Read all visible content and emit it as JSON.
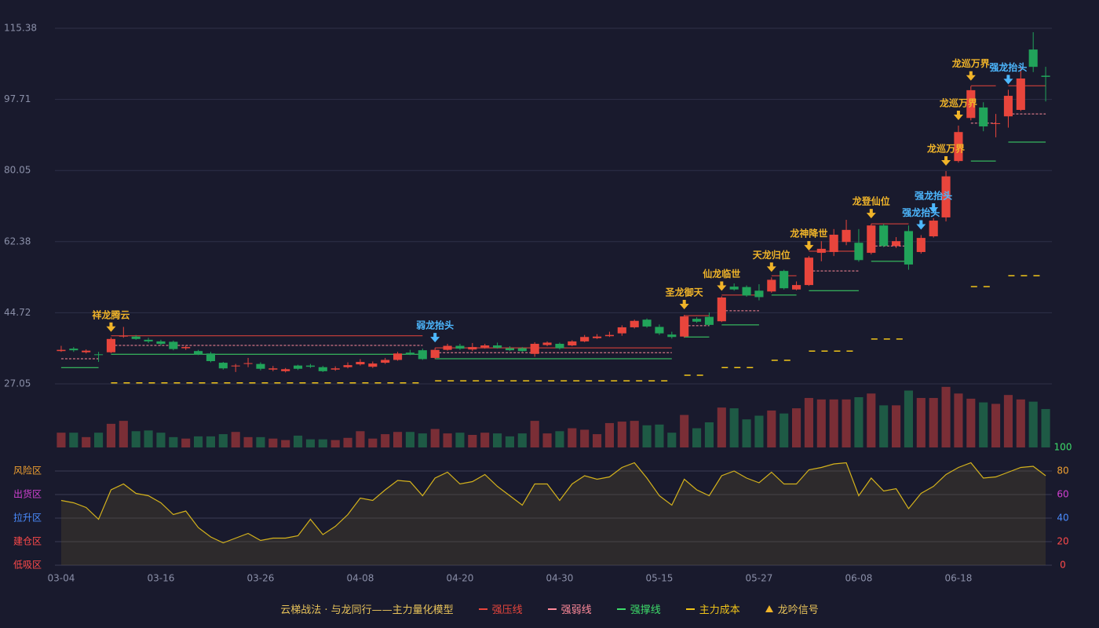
{
  "chart_data": {
    "type": "candlestick",
    "categories": [
      "03-04",
      null,
      null,
      null,
      null,
      null,
      null,
      null,
      "03-16",
      null,
      null,
      null,
      null,
      null,
      null,
      null,
      "03-26",
      null,
      null,
      null,
      null,
      null,
      null,
      null,
      "04-08",
      null,
      null,
      null,
      null,
      null,
      null,
      null,
      "04-20",
      null,
      null,
      null,
      null,
      null,
      null,
      null,
      "04-30",
      null,
      null,
      null,
      null,
      null,
      null,
      null,
      "05-15",
      null,
      null,
      null,
      null,
      null,
      null,
      null,
      "05-27",
      null,
      null,
      null,
      null,
      null,
      null,
      null,
      "06-08",
      null,
      null,
      null,
      null,
      null,
      null,
      null,
      "06-18",
      null,
      null,
      null,
      null,
      null,
      null,
      null
    ],
    "open": [
      35.2,
      35.8,
      34.9,
      34.4,
      34.9,
      38.8,
      38.8,
      38.0,
      37.6,
      37.5,
      35.9,
      35.2,
      34.6,
      32.3,
      31.4,
      32.0,
      32.0,
      30.6,
      30.2,
      31.6,
      31.6,
      31.2,
      30.6,
      31.2,
      31.9,
      31.3,
      32.3,
      33.0,
      34.8,
      35.4,
      33.5,
      35.5,
      36.5,
      35.6,
      36.1,
      36.6,
      35.9,
      35.9,
      34.5,
      36.7,
      37.0,
      36.6,
      37.6,
      38.4,
      38.9,
      39.6,
      41.1,
      43.0,
      41.2,
      39.3,
      38.8,
      43.2,
      43.7,
      42.6,
      51.2,
      51.1,
      50.2,
      50.0,
      55.1,
      50.5,
      51.6,
      59.6,
      59.8,
      62.3,
      62.1,
      59.6,
      66.4,
      61.3,
      65.0,
      59.8,
      63.7,
      68.4,
      82.4,
      93.1,
      95.7,
      91.7,
      93.5,
      95.1,
      110.1,
      103.6
    ],
    "close": [
      35.5,
      35.4,
      35.3,
      34.2,
      38.2,
      39.0,
      38.2,
      37.6,
      37.0,
      35.7,
      36.2,
      34.4,
      32.7,
      30.9,
      31.6,
      32.2,
      30.8,
      30.9,
      30.7,
      30.8,
      31.3,
      30.2,
      30.9,
      31.7,
      32.5,
      32.1,
      33.0,
      34.6,
      34.4,
      33.2,
      35.5,
      36.5,
      35.8,
      36.2,
      36.6,
      36.0,
      35.4,
      35.2,
      37.0,
      37.3,
      35.9,
      37.6,
      38.7,
      38.8,
      39.2,
      41.1,
      42.7,
      41.3,
      39.6,
      38.7,
      43.8,
      42.5,
      41.7,
      48.5,
      50.5,
      49.0,
      48.6,
      52.9,
      50.8,
      51.6,
      58.4,
      60.6,
      64.1,
      65.3,
      57.8,
      66.4,
      61.3,
      62.5,
      56.7,
      63.3,
      67.6,
      78.6,
      89.6,
      100.0,
      91.0,
      91.8,
      98.6,
      102.9,
      105.8,
      103.3
    ],
    "high": [
      36.5,
      36.2,
      35.6,
      35.0,
      38.6,
      41.2,
      39.2,
      38.5,
      38.0,
      37.8,
      36.6,
      35.5,
      35.0,
      32.5,
      32.0,
      33.5,
      32.4,
      31.5,
      31.0,
      31.8,
      32.0,
      31.5,
      31.4,
      32.4,
      33.2,
      32.6,
      33.5,
      35.0,
      35.5,
      35.8,
      36.0,
      37.0,
      37.0,
      37.2,
      37.0,
      37.3,
      36.4,
      36.2,
      37.4,
      37.6,
      37.3,
      37.9,
      39.2,
      39.4,
      40.0,
      41.6,
      43.0,
      43.3,
      41.8,
      40.0,
      44.2,
      43.6,
      44.8,
      48.8,
      52.0,
      51.5,
      51.8,
      53.5,
      55.4,
      52.5,
      58.8,
      62.5,
      65.5,
      67.8,
      65.5,
      66.8,
      66.8,
      63.5,
      66.4,
      64.0,
      68.2,
      79.9,
      91.2,
      101.0,
      97.0,
      94.1,
      100.1,
      106.0,
      114.4,
      105.8
    ],
    "low": [
      35.0,
      35.0,
      34.6,
      32.5,
      34.7,
      38.5,
      38.0,
      37.2,
      36.6,
      35.4,
      35.5,
      34.2,
      32.4,
      30.6,
      30.0,
      31.2,
      30.4,
      30.2,
      29.9,
      30.5,
      31.0,
      30.0,
      30.3,
      30.9,
      31.6,
      31.0,
      32.0,
      32.8,
      34.2,
      33.0,
      33.2,
      35.3,
      35.5,
      35.2,
      35.8,
      35.8,
      35.2,
      35.0,
      33.8,
      36.4,
      35.6,
      36.4,
      37.4,
      38.2,
      38.7,
      39.0,
      40.8,
      41.0,
      39.2,
      38.3,
      38.5,
      42.2,
      41.4,
      42.4,
      50.2,
      48.7,
      47.8,
      49.7,
      50.5,
      50.3,
      51.4,
      57.5,
      58.8,
      61.5,
      57.4,
      59.2,
      61.0,
      60.8,
      55.4,
      59.4,
      63.4,
      67.4,
      82.0,
      92.5,
      89.8,
      88.3,
      90.7,
      94.8,
      104.5,
      97.2
    ],
    "up_color": "#e8453c",
    "down_color": "#21a35a",
    "ylim": [
      27.05,
      115.38
    ],
    "yticks": [
      27.05,
      44.72,
      62.38,
      80.05,
      97.71,
      115.38
    ],
    "grid": true,
    "volume": {
      "values": [
        20,
        20,
        14,
        20,
        32,
        36,
        22,
        23,
        20,
        14,
        12,
        15,
        15,
        18,
        21,
        14,
        14,
        12,
        10,
        16,
        11,
        11,
        10,
        13,
        22,
        12,
        18,
        21,
        21,
        19,
        25,
        19,
        20,
        17,
        20,
        19,
        15,
        19,
        36,
        19,
        22,
        26,
        24,
        18,
        33,
        35,
        36,
        30,
        31,
        20,
        44,
        26,
        34,
        54,
        53,
        38,
        43,
        50,
        46,
        53,
        67,
        65,
        65,
        65,
        68,
        73,
        57,
        57,
        77,
        67,
        67,
        82,
        73,
        66,
        61,
        59,
        71,
        65,
        62,
        52
      ],
      "ylim": [
        0,
        85
      ],
      "up_color": "#7a2e36",
      "down_color": "#1e5a45"
    },
    "levels": {
      "ranges": [
        [
          0,
          3
        ],
        [
          4,
          29
        ],
        [
          30,
          49
        ],
        [
          50,
          52
        ],
        [
          53,
          56
        ],
        [
          57,
          59
        ],
        [
          60,
          64
        ],
        [
          65,
          68
        ],
        [
          73,
          75
        ],
        [
          76,
          79
        ]
      ],
      "series": [
        {
          "name": "强压线",
          "color": "#e8453c",
          "dash": false,
          "values": [
            null,
            39.0,
            36.0,
            44.0,
            49.1,
            53.9,
            60.0,
            66.8,
            101.1,
            101.1
          ]
        },
        {
          "name": "强弱线",
          "color": "#ff8a9a",
          "dash": true,
          "values": [
            33.3,
            36.6,
            34.8,
            41.5,
            45.2,
            null,
            55.1,
            61.3,
            91.8,
            94.1
          ]
        },
        {
          "name": "强撑线",
          "color": "#3ddc6a",
          "dash": false,
          "values": [
            31.1,
            34.4,
            33.3,
            38.7,
            41.7,
            49.1,
            50.2,
            57.5,
            82.4,
            87.1
          ]
        },
        {
          "name": "主力成本",
          "color": "#f0c419",
          "dash": true,
          "values": [
            null,
            27.3,
            27.8,
            29.2,
            31.1,
            32.9,
            35.2,
            38.2,
            51.2,
            53.9
          ]
        }
      ]
    },
    "signals": [
      {
        "index": 4,
        "label": "祥龙腾云",
        "color": "#f0b429"
      },
      {
        "index": 30,
        "label": "弱龙抬头",
        "color": "#4db8ff"
      },
      {
        "index": 50,
        "label": "圣龙御天",
        "color": "#f0b429"
      },
      {
        "index": 53,
        "label": "仙龙临世",
        "color": "#f0b429"
      },
      {
        "index": 57,
        "label": "天龙归位",
        "color": "#f0b429"
      },
      {
        "index": 60,
        "label": "龙神降世",
        "color": "#f0b429"
      },
      {
        "index": 65,
        "label": "龙登仙位",
        "color": "#f0b429"
      },
      {
        "index": 69,
        "label": "强龙抬头",
        "color": "#4db8ff"
      },
      {
        "index": 70,
        "label": "强龙抬头",
        "color": "#4db8ff"
      },
      {
        "index": 71,
        "label": "龙巡万界",
        "color": "#f0b429"
      },
      {
        "index": 72,
        "label": "龙巡万界",
        "color": "#f0b429"
      },
      {
        "index": 73,
        "label": "龙巡万界",
        "color": "#f0b429"
      },
      {
        "index": 76,
        "label": "强龙抬头",
        "color": "#4db8ff"
      }
    ],
    "oscillator": {
      "values": [
        55,
        53,
        49,
        39,
        64,
        69,
        61,
        59,
        53,
        43,
        46,
        32,
        24,
        19,
        23,
        27,
        21,
        23,
        23,
        25,
        39,
        26,
        33,
        43,
        57,
        55,
        64,
        72,
        71,
        59,
        74,
        79,
        69,
        71,
        77,
        67,
        59,
        51,
        69,
        69,
        55,
        69,
        76,
        73,
        75,
        83,
        87,
        74,
        59,
        51,
        73,
        64,
        59,
        76,
        80,
        74,
        70,
        79,
        69,
        69,
        81,
        83,
        86,
        87,
        59,
        74,
        63,
        65,
        48,
        61,
        67,
        77,
        83,
        87,
        74,
        75,
        79,
        83,
        84,
        76
      ],
      "ylim": [
        0,
        100
      ],
      "yticks": [
        0,
        20,
        40,
        60,
        80,
        100
      ],
      "tick_colors": [
        "#ff4a4a",
        "#ff4a4a",
        "#4a8cff",
        "#d040d0",
        "#f0a030",
        "#3ddc6a"
      ],
      "zones": [
        "低吸区",
        "建仓区",
        "拉升区",
        "出货区",
        "风险区"
      ],
      "zone_colors": [
        "#ff4a4a",
        "#ff4a4a",
        "#4a8cff",
        "#d040d0",
        "#f0a030"
      ],
      "color": "#d4b21c"
    },
    "legend_title": "云梯战法 · 与龙同行——主力量化模型",
    "signal_legend": "龙吟信号"
  }
}
